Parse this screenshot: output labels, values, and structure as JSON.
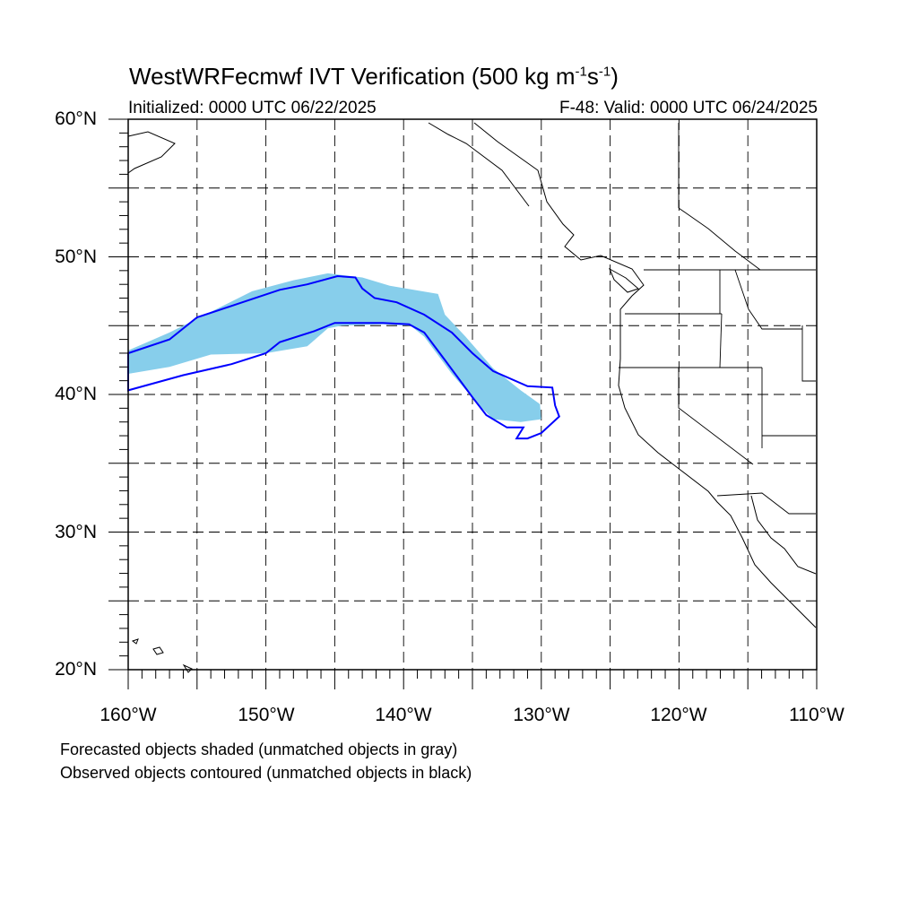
{
  "title": {
    "prefix": "WestWRFecmwf IVT Verification (500 kg m",
    "exp1": "-1",
    "mid": "s",
    "exp2": "-1",
    "suffix": ")"
  },
  "initialized": "Initialized: 0000 UTC 06/22/2025",
  "valid": "F-48: Valid: 0000 UTC 06/24/2025",
  "lat_labels": [
    "60°N",
    "50°N",
    "40°N",
    "30°N",
    "20°N"
  ],
  "lon_labels": [
    "160°W",
    "150°W",
    "140°W",
    "130°W",
    "120°W",
    "110°W"
  ],
  "notes": [
    "Forecasted objects shaded (unmatched objects in gray)",
    "Observed objects contoured (unmatched objects in black)"
  ],
  "colors": {
    "forecast_fill": "#87ceeb",
    "observed_contour": "#0000ff",
    "coastline": "#000000",
    "grid": "#000000"
  },
  "map": {
    "projection": "cylindrical-equidistant",
    "lon_range": [
      -160,
      -110
    ],
    "lat_range": [
      20,
      60
    ],
    "grid_lines": "dashed every 5 degrees"
  },
  "forecast_object": {
    "name": "forecast IVT object",
    "outline_lonlat": [
      [
        -160,
        43.2
      ],
      [
        -157,
        44.5
      ],
      [
        -154,
        46.0
      ],
      [
        -151,
        47.5
      ],
      [
        -148,
        48.3
      ],
      [
        -145.5,
        48.8
      ],
      [
        -143,
        48.5
      ],
      [
        -141,
        47.9
      ],
      [
        -137.5,
        47.3
      ],
      [
        -137,
        45.8
      ],
      [
        -135.5,
        44.2
      ],
      [
        -133.5,
        41.9
      ],
      [
        -131.5,
        40.3
      ],
      [
        -130.1,
        39.3
      ],
      [
        -130.0,
        38.2
      ],
      [
        -131.5,
        38.0
      ],
      [
        -133.5,
        38.2
      ],
      [
        -134.5,
        39.2
      ],
      [
        -136.5,
        41.5
      ],
      [
        -138.5,
        44.2
      ],
      [
        -139.5,
        45.0
      ],
      [
        -141.5,
        45.1
      ],
      [
        -144.5,
        45.0
      ],
      [
        -145.5,
        44.8
      ],
      [
        -147,
        43.5
      ],
      [
        -150,
        43.0
      ],
      [
        -154,
        42.9
      ],
      [
        -157,
        42.0
      ],
      [
        -160,
        41.5
      ]
    ]
  },
  "observed_object": {
    "name": "observed IVT object",
    "outline_lonlat": [
      [
        -160,
        43.0
      ],
      [
        -157,
        44.0
      ],
      [
        -155,
        45.6
      ],
      [
        -152,
        46.6
      ],
      [
        -149,
        47.6
      ],
      [
        -147,
        48.0
      ],
      [
        -144.8,
        48.6
      ],
      [
        -143.5,
        48.5
      ],
      [
        -143.0,
        47.7
      ],
      [
        -142.1,
        47.0
      ],
      [
        -140.5,
        46.7
      ],
      [
        -138.5,
        45.8
      ],
      [
        -136.5,
        44.5
      ],
      [
        -135.0,
        43.0
      ],
      [
        -133.5,
        41.7
      ],
      [
        -131,
        40.6
      ],
      [
        -129.2,
        40.5
      ],
      [
        -129.0,
        39.2
      ],
      [
        -128.7,
        38.4
      ],
      [
        -130.0,
        37.2
      ],
      [
        -131,
        36.8
      ],
      [
        -131.8,
        36.8
      ],
      [
        -131.3,
        37.6
      ],
      [
        -132.5,
        37.6
      ],
      [
        -134.0,
        38.5
      ],
      [
        -135.0,
        39.8
      ],
      [
        -137.0,
        42.5
      ],
      [
        -138.5,
        44.5
      ],
      [
        -139.6,
        45.1
      ],
      [
        -141.5,
        45.2
      ],
      [
        -145.0,
        45.2
      ],
      [
        -146.5,
        44.6
      ],
      [
        -149.0,
        43.8
      ],
      [
        -150.0,
        43.0
      ],
      [
        -152.5,
        42.2
      ],
      [
        -156,
        41.4
      ],
      [
        -160,
        40.3
      ]
    ]
  }
}
